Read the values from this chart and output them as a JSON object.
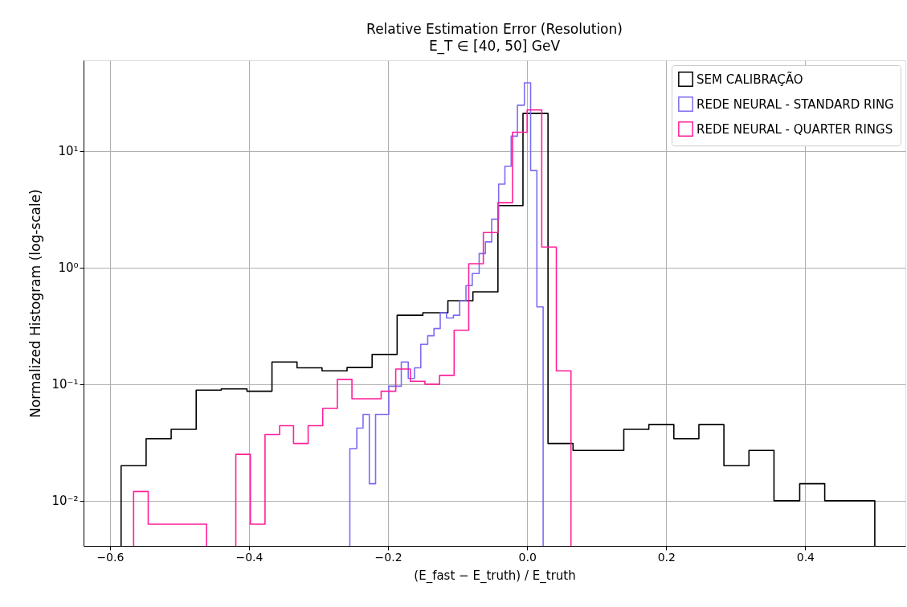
{
  "chart_data": {
    "type": "step",
    "title": "Relative Estimation Error (Resolution)",
    "subtitle": "E_T ∈ [40, 50] GeV",
    "xlabel": "(E_fast − E_truth) / E_truth",
    "ylabel": "Normalized Histogram (log-scale)",
    "log": "y",
    "grid": true,
    "legend": "top right",
    "xlim": [
      -0.638,
      0.544
    ],
    "ylim": [
      0.0041,
      60
    ],
    "xticks": [
      {
        "value": -0.6,
        "label": "−0.6"
      },
      {
        "value": -0.4,
        "label": "−0.4"
      },
      {
        "value": -0.2,
        "label": "−0.2"
      },
      {
        "value": 0,
        "label": "0.0"
      },
      {
        "value": 0.2,
        "label": "0.2"
      },
      {
        "value": 0.4,
        "label": "0.4"
      }
    ],
    "yticks": [
      {
        "value": 0.01,
        "label": "10⁻²"
      },
      {
        "value": 0.1,
        "label": "10⁻¹"
      },
      {
        "value": 1,
        "label": "10⁰"
      },
      {
        "value": 10,
        "label": "10¹"
      }
    ],
    "series": [
      {
        "name": "SEM CALIBRAÇÃO",
        "color": "#000000",
        "line_style": "solid",
        "x": [
          -0.584,
          -0.548,
          -0.512,
          -0.476,
          -0.44,
          -0.403,
          -0.367,
          -0.331,
          -0.295,
          -0.259,
          -0.223,
          -0.187,
          -0.15,
          -0.114,
          -0.078,
          -0.042,
          -0.006,
          0.03,
          0.066,
          0.102,
          0.139,
          0.175,
          0.211,
          0.247,
          0.283,
          0.319,
          0.355,
          0.392,
          0.428,
          0.464,
          0.5
        ],
        "values": [
          0.02,
          0.034,
          0.041,
          0.089,
          0.091,
          0.087,
          0.155,
          0.138,
          0.13,
          0.139,
          0.18,
          0.39,
          0.41,
          0.52,
          0.62,
          3.4,
          21,
          0.031,
          0.027,
          0.027,
          0.041,
          0.045,
          0.034,
          0.045,
          0.02,
          0.027,
          0.01,
          0.014,
          0.01,
          0.01,
          0.01
        ]
      },
      {
        "name": "REDE NEURAL - STANDARD RING",
        "color": "#7b6cf2",
        "line_style": "solid",
        "x": [
          -0.255,
          -0.245,
          -0.236,
          -0.227,
          -0.218,
          -0.208,
          -0.199,
          -0.19,
          -0.181,
          -0.171,
          -0.162,
          -0.153,
          -0.143,
          -0.134,
          -0.125,
          -0.116,
          -0.106,
          -0.097,
          -0.088,
          -0.079,
          -0.069,
          -0.06,
          -0.051,
          -0.041,
          -0.032,
          -0.023,
          -0.014,
          -0.004,
          0.005,
          0.014,
          0.023
        ],
        "values": [
          0.028,
          0.042,
          0.055,
          0.014,
          0.055,
          0.055,
          0.096,
          0.096,
          0.155,
          0.112,
          0.138,
          0.22,
          0.26,
          0.3,
          0.41,
          0.37,
          0.39,
          0.52,
          0.7,
          0.89,
          1.32,
          1.66,
          2.6,
          5.2,
          7.4,
          13.4,
          24.7,
          38.5,
          6.8,
          0.46,
          0.46
        ]
      },
      {
        "name": "REDE NEURAL - QUARTER RINGS",
        "color": "#ff1f9a",
        "line_style": "solid",
        "x": [
          -0.566,
          -0.545,
          -0.524,
          -0.503,
          -0.482,
          -0.461,
          -0.44,
          -0.419,
          -0.398,
          -0.377,
          -0.356,
          -0.336,
          -0.315,
          -0.294,
          -0.273,
          -0.252,
          -0.231,
          -0.21,
          -0.189,
          -0.168,
          -0.147,
          -0.126,
          -0.105,
          -0.084,
          -0.063,
          -0.042,
          -0.021,
          0.0,
          0.021,
          0.042,
          0.063
        ],
        "values": [
          0.012,
          0.0063,
          0.0063,
          0.0063,
          0.0063,
          null,
          null,
          0.025,
          0.0063,
          0.037,
          0.044,
          0.031,
          0.044,
          0.062,
          0.11,
          0.075,
          0.075,
          0.087,
          0.135,
          0.106,
          0.1,
          0.119,
          0.29,
          1.08,
          2.0,
          3.6,
          14.5,
          22.5,
          1.5,
          0.13,
          0.13
        ]
      }
    ]
  }
}
